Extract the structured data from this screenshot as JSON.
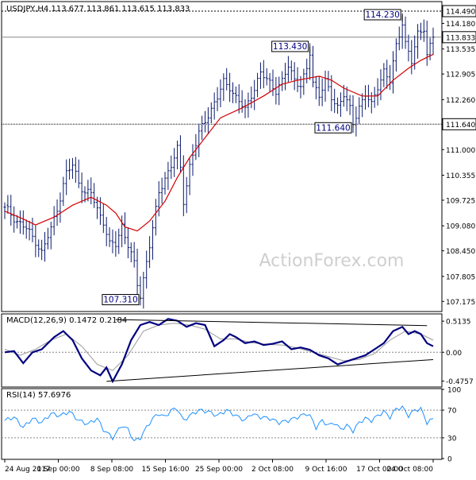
{
  "chart_data": [
    {
      "type": "candlestick",
      "panel": "price",
      "header": "USDJPY,H4  113.677 113.861 113.615 113.833",
      "last_price_tag": "113.833",
      "resistance_tag": "114.490",
      "support_tag": "111.640",
      "watermark": "ActionForex.com",
      "y_ticks": [
        "114.490",
        "114.180",
        "113.535",
        "112.905",
        "112.260",
        "111.640",
        "111.000",
        "110.355",
        "109.725",
        "109.080",
        "108.450",
        "107.805",
        "107.175"
      ],
      "ylim": [
        107.0,
        114.65
      ],
      "x_ticks": [
        "24 Aug 2017",
        "1 Sep 00:00",
        "8 Sep 08:00",
        "15 Sep 16:00",
        "25 Sep 00:00",
        "2 Oct 08:00",
        "9 Oct 16:00",
        "17 Oct 00:00",
        "24 Oct 08:00"
      ],
      "price_path": [
        [
          0,
          109.55
        ],
        [
          4,
          109.2
        ],
        [
          7,
          109.0
        ],
        [
          10,
          108.7
        ],
        [
          12,
          108.4
        ],
        [
          15,
          109.0
        ],
        [
          18,
          109.8
        ],
        [
          20,
          110.4
        ],
        [
          22,
          110.6
        ],
        [
          24,
          110.2
        ],
        [
          26,
          109.9
        ],
        [
          28,
          109.9
        ],
        [
          30,
          109.5
        ],
        [
          32,
          109.2
        ],
        [
          34,
          108.6
        ],
        [
          36,
          108.6
        ],
        [
          38,
          109.1
        ],
        [
          40,
          108.6
        ],
        [
          42,
          108.1
        ],
        [
          43,
          107.6
        ],
        [
          44,
          107.31
        ],
        [
          46,
          108.2
        ],
        [
          48,
          109.0
        ],
        [
          50,
          109.9
        ],
        [
          52,
          110.3
        ],
        [
          54,
          110.6
        ],
        [
          56,
          111.0
        ],
        [
          57,
          110.5
        ],
        [
          58,
          109.7
        ],
        [
          60,
          110.6
        ],
        [
          63,
          111.4
        ],
        [
          66,
          111.9
        ],
        [
          69,
          112.3
        ],
        [
          71,
          112.7
        ],
        [
          73,
          112.6
        ],
        [
          75,
          112.3
        ],
        [
          78,
          112.0
        ],
        [
          80,
          112.4
        ],
        [
          83,
          112.9
        ],
        [
          86,
          112.7
        ],
        [
          88,
          112.5
        ],
        [
          90,
          112.7
        ],
        [
          92,
          113.1
        ],
        [
          94,
          112.8
        ],
        [
          96,
          112.6
        ],
        [
          98,
          113.0
        ],
        [
          99,
          113.43
        ],
        [
          100,
          112.7
        ],
        [
          102,
          112.4
        ],
        [
          104,
          112.7
        ],
        [
          106,
          112.3
        ],
        [
          108,
          112.1
        ],
        [
          110,
          112.4
        ],
        [
          112,
          112.0
        ],
        [
          113,
          111.64
        ],
        [
          115,
          112.1
        ],
        [
          117,
          112.4
        ],
        [
          119,
          112.1
        ],
        [
          121,
          112.6
        ],
        [
          123,
          113.0
        ],
        [
          125,
          112.7
        ],
        [
          127,
          113.6
        ],
        [
          129,
          114.23
        ],
        [
          130,
          113.7
        ],
        [
          132,
          113.2
        ],
        [
          134,
          113.9
        ],
        [
          136,
          114.1
        ],
        [
          137,
          113.4
        ],
        [
          139,
          113.833
        ]
      ],
      "ma_path": [
        [
          0,
          109.45
        ],
        [
          6,
          109.25
        ],
        [
          10,
          109.1
        ],
        [
          16,
          109.3
        ],
        [
          22,
          109.6
        ],
        [
          28,
          109.8
        ],
        [
          33,
          109.6
        ],
        [
          36,
          109.4
        ],
        [
          39,
          109.05
        ],
        [
          43,
          108.95
        ],
        [
          47,
          109.2
        ],
        [
          52,
          109.7
        ],
        [
          56,
          110.3
        ],
        [
          60,
          110.8
        ],
        [
          65,
          111.3
        ],
        [
          70,
          111.8
        ],
        [
          77,
          112.05
        ],
        [
          84,
          112.35
        ],
        [
          90,
          112.65
        ],
        [
          95,
          112.75
        ],
        [
          102,
          112.85
        ],
        [
          106,
          112.75
        ],
        [
          110,
          112.55
        ],
        [
          116,
          112.35
        ],
        [
          121,
          112.35
        ],
        [
          126,
          112.75
        ],
        [
          131,
          113.05
        ],
        [
          135,
          113.25
        ],
        [
          139,
          113.4
        ]
      ],
      "annotations": [
        {
          "text": "107.310",
          "x": 44,
          "y": 107.31
        },
        {
          "text": "113.430",
          "x": 99,
          "y": 113.43
        },
        {
          "text": "111.640",
          "x": 113,
          "y": 111.64
        },
        {
          "text": "114.230",
          "x": 129,
          "y": 114.23
        }
      ]
    },
    {
      "type": "line",
      "panel": "macd",
      "header": "MACD(12,26,9) 0.1472 0.2184",
      "y_ticks": [
        "0.5135",
        "0.00",
        "-0.4757"
      ],
      "ylim": [
        -0.56,
        0.62
      ],
      "series": [
        {
          "values": [
            [
              0,
              0.0
            ],
            [
              3,
              0.02
            ],
            [
              6,
              -0.18
            ],
            [
              9,
              0.0
            ],
            [
              12,
              0.05
            ],
            [
              16,
              0.25
            ],
            [
              19,
              0.35
            ],
            [
              22,
              0.2
            ],
            [
              25,
              -0.1
            ],
            [
              28,
              -0.3
            ],
            [
              31,
              -0.38
            ],
            [
              33,
              -0.25
            ],
            [
              35,
              -0.48
            ],
            [
              38,
              -0.2
            ],
            [
              41,
              0.2
            ],
            [
              44,
              0.45
            ],
            [
              47,
              0.5
            ],
            [
              50,
              0.45
            ],
            [
              53,
              0.55
            ],
            [
              56,
              0.52
            ],
            [
              59,
              0.42
            ],
            [
              62,
              0.48
            ],
            [
              65,
              0.45
            ],
            [
              68,
              0.1
            ],
            [
              71,
              0.2
            ],
            [
              73,
              0.3
            ],
            [
              75,
              0.25
            ],
            [
              78,
              0.15
            ],
            [
              81,
              0.18
            ],
            [
              84,
              0.12
            ],
            [
              87,
              0.14
            ],
            [
              90,
              0.18
            ],
            [
              93,
              0.05
            ],
            [
              96,
              0.08
            ],
            [
              99,
              0.04
            ],
            [
              102,
              -0.05
            ],
            [
              105,
              -0.1
            ],
            [
              108,
              -0.2
            ],
            [
              111,
              -0.15
            ],
            [
              114,
              -0.1
            ],
            [
              117,
              -0.05
            ],
            [
              120,
              0.05
            ],
            [
              123,
              0.15
            ],
            [
              126,
              0.35
            ],
            [
              129,
              0.42
            ],
            [
              131,
              0.3
            ],
            [
              133,
              0.35
            ],
            [
              135,
              0.3
            ],
            [
              137,
              0.15
            ],
            [
              139,
              0.1
            ]
          ]
        },
        {
          "values": [
            [
              0,
              0.05
            ],
            [
              5,
              -0.05
            ],
            [
              10,
              0.05
            ],
            [
              15,
              0.2
            ],
            [
              20,
              0.3
            ],
            [
              25,
              0.1
            ],
            [
              30,
              -0.2
            ],
            [
              35,
              -0.3
            ],
            [
              40,
              -0.05
            ],
            [
              45,
              0.35
            ],
            [
              50,
              0.45
            ],
            [
              55,
              0.48
            ],
            [
              60,
              0.45
            ],
            [
              65,
              0.38
            ],
            [
              70,
              0.22
            ],
            [
              75,
              0.22
            ],
            [
              80,
              0.16
            ],
            [
              85,
              0.13
            ],
            [
              90,
              0.12
            ],
            [
              95,
              0.07
            ],
            [
              100,
              0.0
            ],
            [
              105,
              -0.07
            ],
            [
              110,
              -0.14
            ],
            [
              115,
              -0.12
            ],
            [
              120,
              -0.02
            ],
            [
              125,
              0.2
            ],
            [
              130,
              0.35
            ],
            [
              135,
              0.3
            ],
            [
              139,
              0.2
            ]
          ]
        }
      ],
      "trendlines": [
        {
          "from": [
            36,
            0.54
          ],
          "to": [
            137,
            0.44
          ]
        },
        {
          "from": [
            33,
            -0.48
          ],
          "to": [
            139,
            -0.12
          ]
        }
      ]
    },
    {
      "type": "line",
      "panel": "rsi",
      "header": "RSI(14) 57.6976",
      "y_ticks": [
        "100",
        "70",
        "30",
        "0"
      ],
      "ylim": [
        0,
        100
      ],
      "levels": [
        70,
        30
      ],
      "series": [
        {
          "values": [
            [
              0,
              55
            ],
            [
              3,
              60
            ],
            [
              6,
              45
            ],
            [
              9,
              58
            ],
            [
              12,
              52
            ],
            [
              15,
              65
            ],
            [
              18,
              62
            ],
            [
              21,
              68
            ],
            [
              24,
              55
            ],
            [
              27,
              50
            ],
            [
              30,
              58
            ],
            [
              32,
              42
            ],
            [
              35,
              30
            ],
            [
              38,
              48
            ],
            [
              40,
              42
            ],
            [
              42,
              25
            ],
            [
              44,
              30
            ],
            [
              46,
              45
            ],
            [
              48,
              58
            ],
            [
              50,
              65
            ],
            [
              52,
              60
            ],
            [
              54,
              70
            ],
            [
              56,
              72
            ],
            [
              58,
              55
            ],
            [
              60,
              62
            ],
            [
              63,
              70
            ],
            [
              66,
              68
            ],
            [
              69,
              62
            ],
            [
              72,
              70
            ],
            [
              75,
              62
            ],
            [
              78,
              55
            ],
            [
              80,
              65
            ],
            [
              83,
              60
            ],
            [
              86,
              58
            ],
            [
              89,
              52
            ],
            [
              92,
              55
            ],
            [
              95,
              60
            ],
            [
              98,
              65
            ],
            [
              99,
              62
            ],
            [
              101,
              45
            ],
            [
              103,
              55
            ],
            [
              105,
              48
            ],
            [
              107,
              52
            ],
            [
              109,
              42
            ],
            [
              111,
              48
            ],
            [
              113,
              40
            ],
            [
              115,
              52
            ],
            [
              117,
              58
            ],
            [
              119,
              55
            ],
            [
              121,
              62
            ],
            [
              123,
              68
            ],
            [
              125,
              60
            ],
            [
              127,
              72
            ],
            [
              129,
              74
            ],
            [
              131,
              62
            ],
            [
              133,
              70
            ],
            [
              135,
              72
            ],
            [
              137,
              52
            ],
            [
              139,
              57.7
            ]
          ]
        }
      ]
    }
  ]
}
